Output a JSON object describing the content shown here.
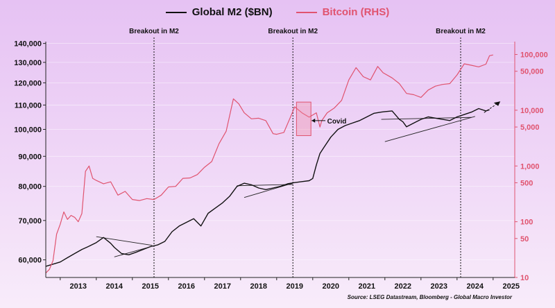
{
  "chart_data": {
    "type": "line",
    "legend": [
      {
        "label": "Global M2 ($BN)",
        "color": "#111111"
      },
      {
        "label": "Bitcoin (RHS)",
        "color": "#e0536f"
      }
    ],
    "legend_position": "top-center",
    "x_ticks": [
      "2013",
      "2014",
      "2015",
      "2016",
      "2017",
      "2018",
      "2019",
      "2020",
      "2021",
      "2022",
      "2023",
      "2024",
      "2025"
    ],
    "x_range": [
      2012.6,
      2025.6
    ],
    "y_left": {
      "scale": "log",
      "range": [
        56000,
        141000
      ],
      "ticks": [
        "60,000",
        "70,000",
        "80,000",
        "90,000",
        "100,000",
        "110,000",
        "120,000",
        "130,000",
        "140,000"
      ],
      "tick_values": [
        60000,
        70000,
        80000,
        90000,
        100000,
        110000,
        120000,
        130000,
        140000
      ]
    },
    "y_right": {
      "scale": "log",
      "range": [
        10,
        170000
      ],
      "ticks": [
        "10",
        "50",
        "100",
        "500",
        "1,000",
        "5,000",
        "10,000",
        "50,000",
        "100,000"
      ],
      "tick_values": [
        10,
        50,
        100,
        500,
        1000,
        5000,
        10000,
        50000,
        100000
      ]
    },
    "grid": true,
    "series": [
      {
        "name": "Global M2 ($BN)",
        "axis": "left",
        "color": "#111111",
        "x": [
          2012.6,
          2012.8,
          2013.0,
          2013.2,
          2013.4,
          2013.6,
          2013.8,
          2014.0,
          2014.2,
          2014.4,
          2014.5,
          2014.7,
          2014.9,
          2015.1,
          2015.3,
          2015.5,
          2015.7,
          2015.9,
          2016.1,
          2016.3,
          2016.5,
          2016.7,
          2016.9,
          2017.1,
          2017.3,
          2017.5,
          2017.7,
          2017.9,
          2018.1,
          2018.3,
          2018.5,
          2018.7,
          2018.9,
          2019.1,
          2019.3,
          2019.5,
          2019.7,
          2019.9,
          2020.0,
          2020.1,
          2020.2,
          2020.3,
          2020.5,
          2020.7,
          2020.9,
          2021.1,
          2021.3,
          2021.5,
          2021.7,
          2021.9,
          2022.0,
          2022.2,
          2022.4,
          2022.5,
          2022.6,
          2022.8,
          2023.0,
          2023.2,
          2023.4,
          2023.6,
          2023.8,
          2024.0,
          2024.2,
          2024.4,
          2024.6,
          2024.8,
          2024.9
        ],
        "y": [
          58500,
          59000,
          59500,
          60500,
          61500,
          62500,
          63300,
          64200,
          65500,
          64000,
          63000,
          61500,
          61200,
          61800,
          62500,
          63200,
          63600,
          64500,
          67000,
          68500,
          69500,
          70500,
          68500,
          72000,
          73500,
          75000,
          77000,
          80000,
          81000,
          80500,
          79500,
          79000,
          79500,
          80000,
          80800,
          81200,
          81500,
          81800,
          82500,
          87000,
          91000,
          93000,
          97000,
          100000,
          101500,
          102500,
          103500,
          105000,
          106500,
          107000,
          107200,
          107500,
          104000,
          103000,
          101000,
          102500,
          104000,
          105000,
          104500,
          104000,
          103500,
          105000,
          106000,
          107000,
          108500,
          107500,
          108000
        ]
      },
      {
        "name": "Bitcoin (RHS)",
        "axis": "right",
        "color": "#e0536f",
        "x": [
          2012.6,
          2012.7,
          2012.8,
          2012.9,
          2013.0,
          2013.1,
          2013.2,
          2013.3,
          2013.4,
          2013.5,
          2013.6,
          2013.7,
          2013.8,
          2013.9,
          2014.0,
          2014.2,
          2014.4,
          2014.6,
          2014.8,
          2015.0,
          2015.2,
          2015.4,
          2015.6,
          2015.8,
          2016.0,
          2016.2,
          2016.4,
          2016.6,
          2016.8,
          2017.0,
          2017.2,
          2017.4,
          2017.6,
          2017.8,
          2017.95,
          2018.1,
          2018.3,
          2018.5,
          2018.7,
          2018.9,
          2019.0,
          2019.2,
          2019.4,
          2019.5,
          2019.7,
          2019.9,
          2020.1,
          2020.2,
          2020.25,
          2020.4,
          2020.6,
          2020.8,
          2021.0,
          2021.2,
          2021.4,
          2021.6,
          2021.8,
          2021.95,
          2022.2,
          2022.4,
          2022.6,
          2022.8,
          2023.0,
          2023.2,
          2023.4,
          2023.6,
          2023.8,
          2024.0,
          2024.2,
          2024.4,
          2024.6,
          2024.8,
          2024.9,
          2025.0
        ],
        "y": [
          12,
          14,
          20,
          60,
          90,
          150,
          110,
          130,
          120,
          100,
          140,
          800,
          1000,
          600,
          550,
          480,
          520,
          300,
          350,
          250,
          240,
          260,
          250,
          300,
          420,
          430,
          600,
          610,
          700,
          950,
          1200,
          2500,
          4200,
          16000,
          13000,
          9000,
          7000,
          7200,
          6500,
          3800,
          3700,
          4000,
          8000,
          11500,
          9000,
          7500,
          9000,
          5000,
          6500,
          9000,
          11000,
          15000,
          35000,
          58000,
          40000,
          35000,
          61000,
          47000,
          38000,
          30000,
          20000,
          19000,
          17000,
          23000,
          27000,
          29000,
          30000,
          43000,
          68000,
          64000,
          60000,
          67000,
          95000,
          98000
        ]
      }
    ],
    "annotations": {
      "breakout_label": "Breakout in M2",
      "breakout_years": [
        2015.6,
        2019.45,
        2024.1
      ],
      "covid_label": "Covid"
    },
    "source": "Source: LSEG Datastream, Bloomberg - Global Macro Investor"
  }
}
